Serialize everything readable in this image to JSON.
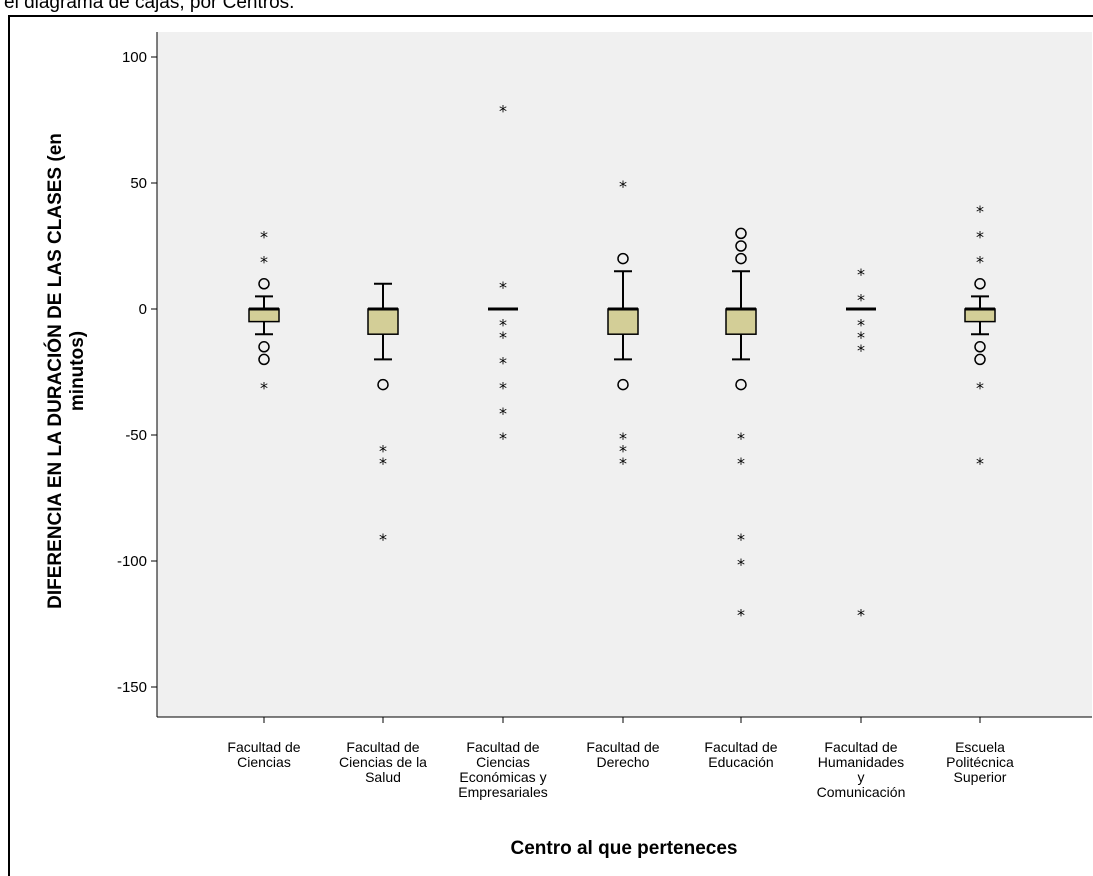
{
  "caption": "el diagrama de cajas, por Centros.",
  "chart_data": {
    "type": "boxplot",
    "title": "",
    "xlabel": "Centro al que perteneces",
    "ylabel": [
      "DIFERENCIA EN LA DURACIÓN DE LAS CLASES (en",
      "minutos)"
    ],
    "ylim": [
      -165,
      115
    ],
    "yticks": [
      100,
      50,
      0,
      -50,
      -100,
      -150
    ],
    "grid": false,
    "colors": {
      "plot_bg": "#f0f0f0",
      "box_fill": "#d3ce97",
      "line": "#000000"
    },
    "categories": [
      {
        "label": [
          "Facultad de",
          "Ciencias"
        ],
        "min": -10,
        "q1": -5,
        "median": 0,
        "q3": 0,
        "max": 5,
        "outliers": [
          10,
          -15,
          -20
        ],
        "extremes": [
          30,
          20,
          -30
        ]
      },
      {
        "label": [
          "Facultad de",
          "Ciencias de la",
          "Salud"
        ],
        "min": -20,
        "q1": -10,
        "median": 0,
        "q3": 0,
        "max": 10,
        "outliers": [
          -30
        ],
        "extremes": [
          -55,
          -60,
          -90
        ]
      },
      {
        "label": [
          "Facultad de",
          "Ciencias",
          "Económicas y",
          "Empresariales"
        ],
        "min": 0,
        "q1": 0,
        "median": 0,
        "q3": 0,
        "max": 0,
        "outliers": [],
        "extremes": [
          80,
          10,
          -5,
          -10,
          -20,
          -30,
          -40,
          -50
        ]
      },
      {
        "label": [
          "Facultad de",
          "Derecho"
        ],
        "min": -20,
        "q1": -10,
        "median": 0,
        "q3": 0,
        "max": 15,
        "outliers": [
          20,
          -30
        ],
        "extremes": [
          50,
          -50,
          -55,
          -60
        ]
      },
      {
        "label": [
          "Facultad de",
          "Educación"
        ],
        "min": -20,
        "q1": -10,
        "median": 0,
        "q3": 0,
        "max": 15,
        "outliers": [
          30,
          25,
          20,
          -30
        ],
        "extremes": [
          -50,
          -60,
          -90,
          -100,
          -120
        ]
      },
      {
        "label": [
          "Facultad de",
          "Humanidades",
          "y",
          "Comunicación"
        ],
        "min": 0,
        "q1": 0,
        "median": 0,
        "q3": 0,
        "max": 0,
        "outliers": [],
        "extremes": [
          15,
          5,
          -5,
          -10,
          -15,
          -120
        ]
      },
      {
        "label": [
          "Escuela",
          "Politécnica",
          "Superior"
        ],
        "min": -10,
        "q1": -5,
        "median": 0,
        "q3": 0,
        "max": 5,
        "outliers": [
          10,
          -15,
          -20
        ],
        "extremes": [
          40,
          30,
          20,
          -30,
          -60
        ]
      }
    ]
  }
}
